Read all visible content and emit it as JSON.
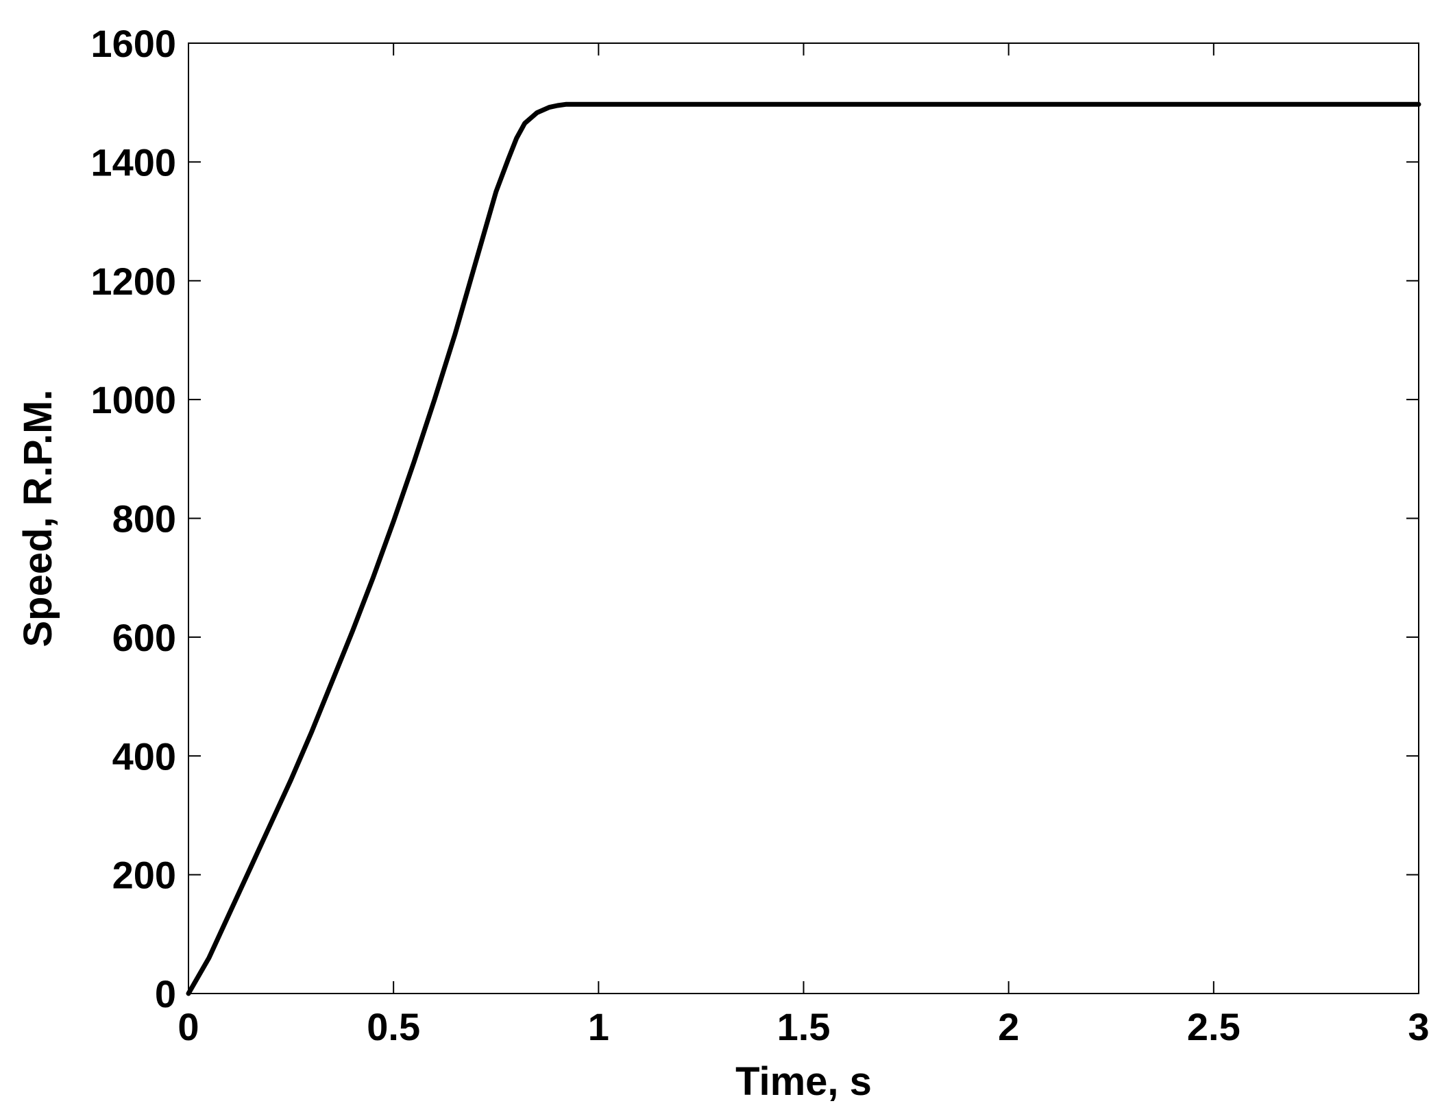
{
  "chart_data": {
    "type": "line",
    "title": "",
    "xlabel": "Time, s",
    "ylabel": "Speed, R.P.M.",
    "xlim": [
      0,
      3
    ],
    "ylim": [
      0,
      1600
    ],
    "xticks": [
      0,
      0.5,
      1,
      1.5,
      2,
      2.5,
      3
    ],
    "xtick_labels": [
      "0",
      "0.5",
      "1",
      "1.5",
      "2",
      "2.5",
      "3"
    ],
    "yticks": [
      0,
      200,
      400,
      600,
      800,
      1000,
      1200,
      1400,
      1600
    ],
    "ytick_labels": [
      "0",
      "200",
      "400",
      "600",
      "800",
      "1000",
      "1200",
      "1400",
      "1600"
    ],
    "grid": false,
    "line_color": "#000000",
    "series": [
      {
        "x": [
          0,
          0.05,
          0.1,
          0.15,
          0.2,
          0.25,
          0.3,
          0.35,
          0.4,
          0.45,
          0.5,
          0.55,
          0.6,
          0.65,
          0.7,
          0.75,
          0.78,
          0.8,
          0.82,
          0.85,
          0.88,
          0.9,
          0.92,
          1.0,
          1.5,
          2.0,
          2.5,
          3.0
        ],
        "y": [
          0,
          60,
          135,
          210,
          285,
          360,
          440,
          525,
          610,
          700,
          795,
          895,
          1000,
          1110,
          1230,
          1350,
          1405,
          1440,
          1465,
          1483,
          1492,
          1495,
          1497,
          1497,
          1497,
          1497,
          1497,
          1497
        ]
      }
    ]
  }
}
